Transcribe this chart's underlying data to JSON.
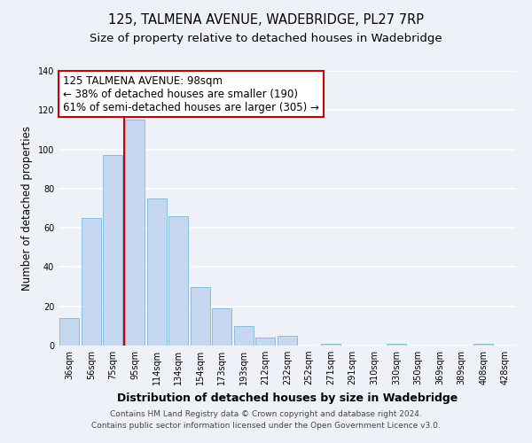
{
  "title": "125, TALMENA AVENUE, WADEBRIDGE, PL27 7RP",
  "subtitle": "Size of property relative to detached houses in Wadebridge",
  "xlabel": "Distribution of detached houses by size in Wadebridge",
  "ylabel": "Number of detached properties",
  "bar_labels": [
    "36sqm",
    "56sqm",
    "75sqm",
    "95sqm",
    "114sqm",
    "134sqm",
    "154sqm",
    "173sqm",
    "193sqm",
    "212sqm",
    "232sqm",
    "252sqm",
    "271sqm",
    "291sqm",
    "310sqm",
    "330sqm",
    "350sqm",
    "369sqm",
    "389sqm",
    "408sqm",
    "428sqm"
  ],
  "bar_values": [
    14,
    65,
    97,
    115,
    75,
    66,
    30,
    19,
    10,
    4,
    5,
    0,
    1,
    0,
    0,
    1,
    0,
    0,
    0,
    1,
    0
  ],
  "bar_color": "#c5d8f0",
  "bar_edgecolor": "#7ab8d8",
  "vline_color": "#cc0000",
  "vline_bar_index": 3,
  "ylim": [
    0,
    140
  ],
  "yticks": [
    0,
    20,
    40,
    60,
    80,
    100,
    120,
    140
  ],
  "annotation_text": "125 TALMENA AVENUE: 98sqm\n← 38% of detached houses are smaller (190)\n61% of semi-detached houses are larger (305) →",
  "annotation_box_facecolor": "#ffffff",
  "annotation_box_edgecolor": "#cc0000",
  "footer_line1": "Contains HM Land Registry data © Crown copyright and database right 2024.",
  "footer_line2": "Contains public sector information licensed under the Open Government Licence v3.0.",
  "background_color": "#eef2f8",
  "grid_color": "#ffffff",
  "title_fontsize": 10.5,
  "subtitle_fontsize": 9.5,
  "xlabel_fontsize": 9,
  "ylabel_fontsize": 8.5,
  "tick_fontsize": 7,
  "annotation_fontsize": 8.5,
  "footer_fontsize": 6.5
}
